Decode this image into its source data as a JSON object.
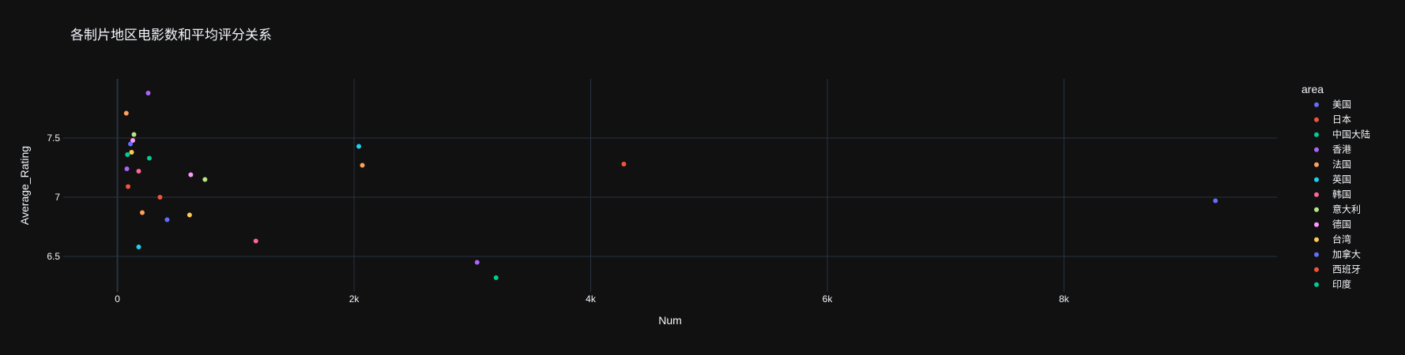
{
  "chart_data": {
    "type": "scatter",
    "title": "各制片地区电影数和平均评分关系",
    "xlabel": "Num",
    "ylabel": "Average_Rating",
    "xlim": [
      -458,
      9800
    ],
    "ylim": [
      6.2,
      8.0
    ],
    "x_ticks": [
      0,
      2000,
      4000,
      6000,
      8000
    ],
    "x_tick_labels": [
      "0",
      "2k",
      "4k",
      "6k",
      "8k"
    ],
    "y_ticks": [
      6.5,
      7,
      7.5
    ],
    "y_tick_labels": [
      "6.5",
      "7",
      "7.5"
    ],
    "grid": true,
    "legend_title": "area",
    "legend_position": "right",
    "series": [
      {
        "name": "美国",
        "color": "#636efa",
        "x": [
          9280
        ],
        "y": [
          6.97
        ]
      },
      {
        "name": "日本",
        "color": "#EF553B",
        "x": [
          4280
        ],
        "y": [
          7.28
        ]
      },
      {
        "name": "中国大陆",
        "color": "#00cc96",
        "x": [
          3200
        ],
        "y": [
          6.32
        ]
      },
      {
        "name": "香港",
        "color": "#ab63fa",
        "x": [
          3040
        ],
        "y": [
          6.45
        ]
      },
      {
        "name": "法国",
        "color": "#FFA15A",
        "x": [
          2070
        ],
        "y": [
          7.27
        ]
      },
      {
        "name": "英国",
        "color": "#19d3f3",
        "x": [
          2040
        ],
        "y": [
          7.43
        ]
      },
      {
        "name": "韩国",
        "color": "#FF6692",
        "x": [
          1170
        ],
        "y": [
          6.63
        ]
      },
      {
        "name": "意大利",
        "color": "#B6E880",
        "x": [
          740
        ],
        "y": [
          7.15
        ]
      },
      {
        "name": "德国",
        "color": "#FF97FF",
        "x": [
          620
        ],
        "y": [
          7.19
        ]
      },
      {
        "name": "台湾",
        "color": "#FECB52",
        "x": [
          610
        ],
        "y": [
          6.85
        ]
      },
      {
        "name": "加拿大",
        "color": "#636efa",
        "x": [
          420
        ],
        "y": [
          6.81
        ]
      },
      {
        "name": "西班牙",
        "color": "#EF553B",
        "x": [
          360
        ],
        "y": [
          7.0
        ]
      },
      {
        "name": "印度",
        "color": "#00cc96",
        "x": [
          270
        ],
        "y": [
          7.33
        ]
      },
      {
        "color": "#ab63fa",
        "x": [
          260
        ],
        "y": [
          7.88
        ]
      },
      {
        "color": "#FFA15A",
        "x": [
          210
        ],
        "y": [
          6.87
        ]
      },
      {
        "color": "#19d3f3",
        "x": [
          180
        ],
        "y": [
          6.58
        ]
      },
      {
        "color": "#FF6692",
        "x": [
          180
        ],
        "y": [
          7.22
        ]
      },
      {
        "color": "#B6E880",
        "x": [
          140
        ],
        "y": [
          7.53
        ]
      },
      {
        "color": "#FF97FF",
        "x": [
          130
        ],
        "y": [
          7.48
        ]
      },
      {
        "color": "#FECB52",
        "x": [
          120
        ],
        "y": [
          7.38
        ]
      },
      {
        "color": "#636efa",
        "x": [
          110
        ],
        "y": [
          7.45
        ]
      },
      {
        "color": "#EF553B",
        "x": [
          90
        ],
        "y": [
          7.09
        ]
      },
      {
        "color": "#00cc96",
        "x": [
          85
        ],
        "y": [
          7.36
        ]
      },
      {
        "color": "#ab63fa",
        "x": [
          80
        ],
        "y": [
          7.24
        ]
      },
      {
        "color": "#FFA15A",
        "x": [
          75
        ],
        "y": [
          7.71
        ]
      }
    ]
  },
  "colors": {
    "background": "#111111",
    "grid": "#283442",
    "zeroline": "#283442",
    "text": "#f2f5fa"
  }
}
